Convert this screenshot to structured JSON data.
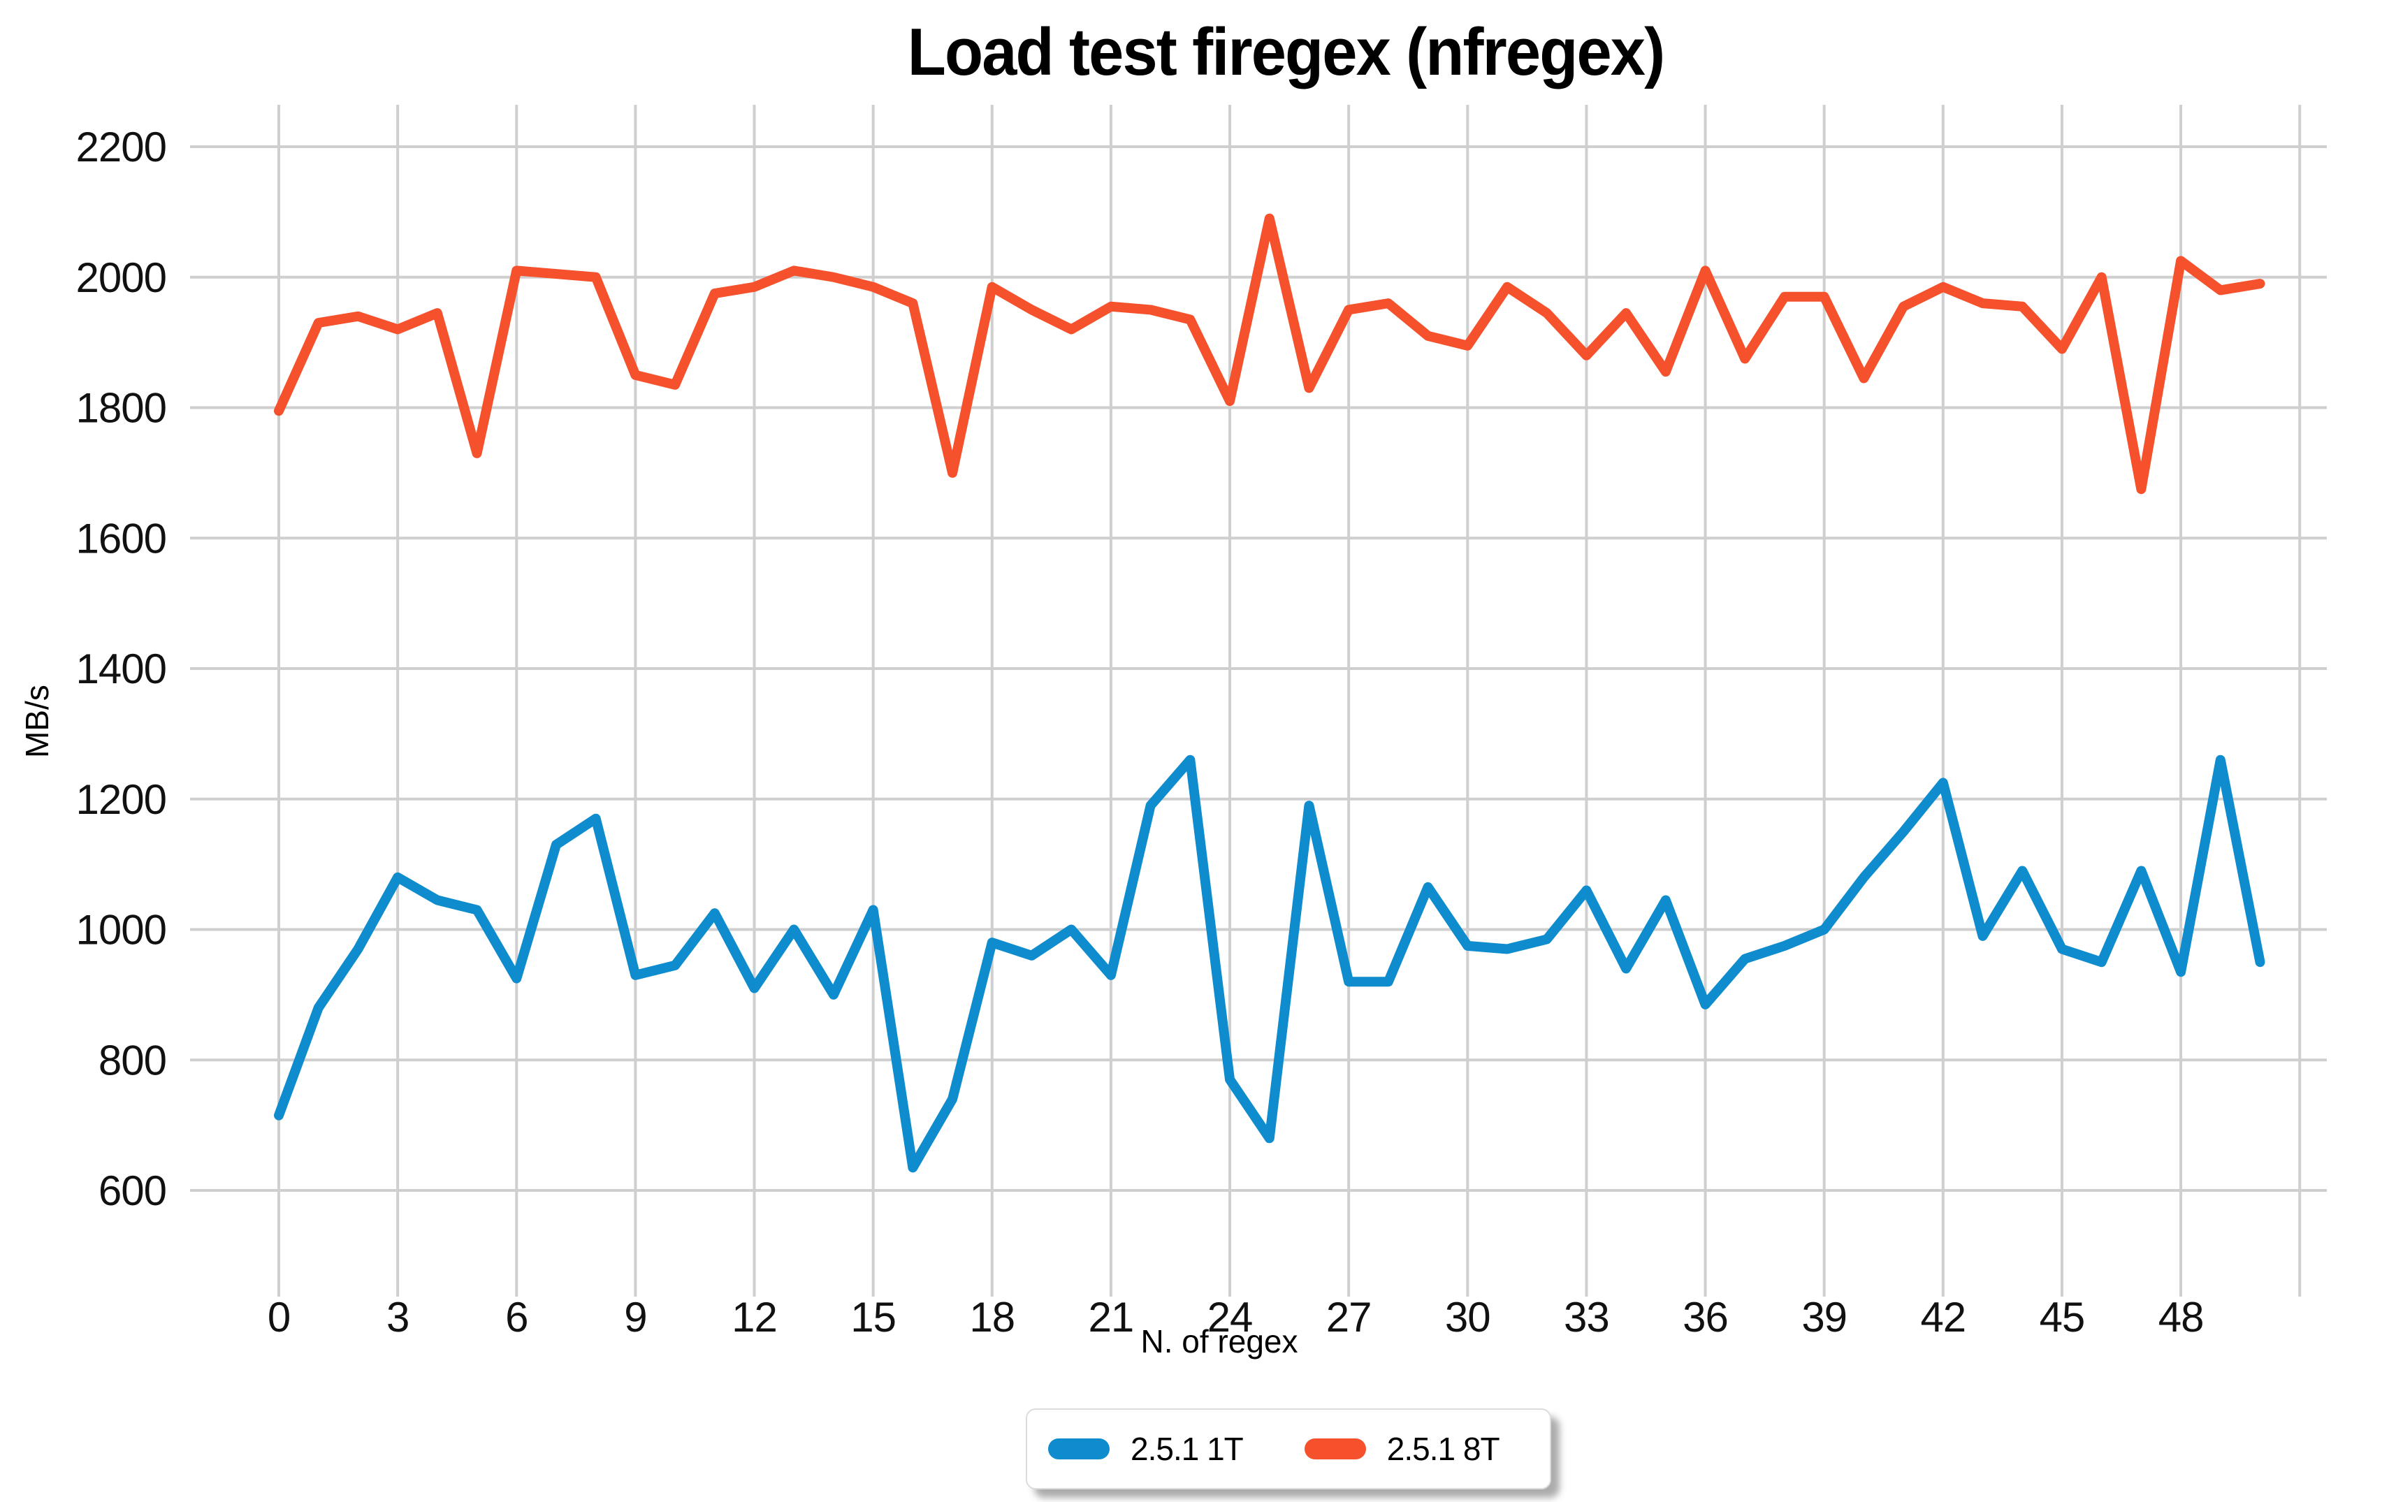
{
  "title": "Load test firegex (nfregex)",
  "chart_data": {
    "type": "line",
    "title": "Load test firegex (nfregex)",
    "xlabel": "N. of regex",
    "ylabel": "MB/s",
    "grid": true,
    "grid_color": "#cfcfcf",
    "legend_position": "bottom-center",
    "xlim": [
      -1.8,
      51.7
    ],
    "ylim": [
      460,
      2260
    ],
    "x_ticks": [
      0,
      3,
      6,
      9,
      12,
      15,
      18,
      21,
      24,
      27,
      30,
      33,
      36,
      39,
      42,
      45,
      48
    ],
    "y_ticks": [
      600,
      800,
      1000,
      1200,
      1400,
      1600,
      1800,
      2000,
      2200
    ],
    "x": [
      0,
      1,
      2,
      3,
      4,
      5,
      6,
      7,
      8,
      9,
      10,
      11,
      12,
      13,
      14,
      15,
      16,
      17,
      18,
      19,
      20,
      21,
      22,
      23,
      24,
      25,
      26,
      27,
      28,
      29,
      30,
      31,
      32,
      33,
      34,
      35,
      36,
      37,
      38,
      39,
      40,
      41,
      42,
      43,
      44,
      45,
      46,
      47,
      48,
      49,
      50
    ],
    "series": [
      {
        "name": "2.5.1 1T",
        "color": "#0e8ccd",
        "values": [
          715,
          880,
          970,
          1080,
          1045,
          1030,
          925,
          1130,
          1170,
          930,
          945,
          1025,
          910,
          1000,
          900,
          1030,
          635,
          740,
          980,
          960,
          1000,
          930,
          1190,
          1260,
          770,
          680,
          1190,
          920,
          920,
          1065,
          975,
          970,
          985,
          1060,
          940,
          1045,
          885,
          955,
          975,
          1000,
          1080,
          1150,
          1225,
          990,
          1090,
          970,
          950,
          1090,
          935,
          1260,
          950
        ]
      },
      {
        "name": "2.5.1 8T",
        "color": "#f5512c",
        "values": [
          1795,
          1930,
          1940,
          1920,
          1945,
          1730,
          2010,
          2005,
          2000,
          1850,
          1835,
          1975,
          1985,
          2010,
          2000,
          1985,
          1960,
          1700,
          1985,
          1950,
          1920,
          1955,
          1950,
          1935,
          1810,
          2090,
          1830,
          1950,
          1960,
          1910,
          1895,
          1985,
          1945,
          1880,
          1945,
          1855,
          2010,
          1875,
          1970,
          1970,
          1845,
          1955,
          1985,
          1960,
          1955,
          1890,
          2000,
          1675,
          2025,
          1980,
          1990
        ]
      }
    ]
  }
}
